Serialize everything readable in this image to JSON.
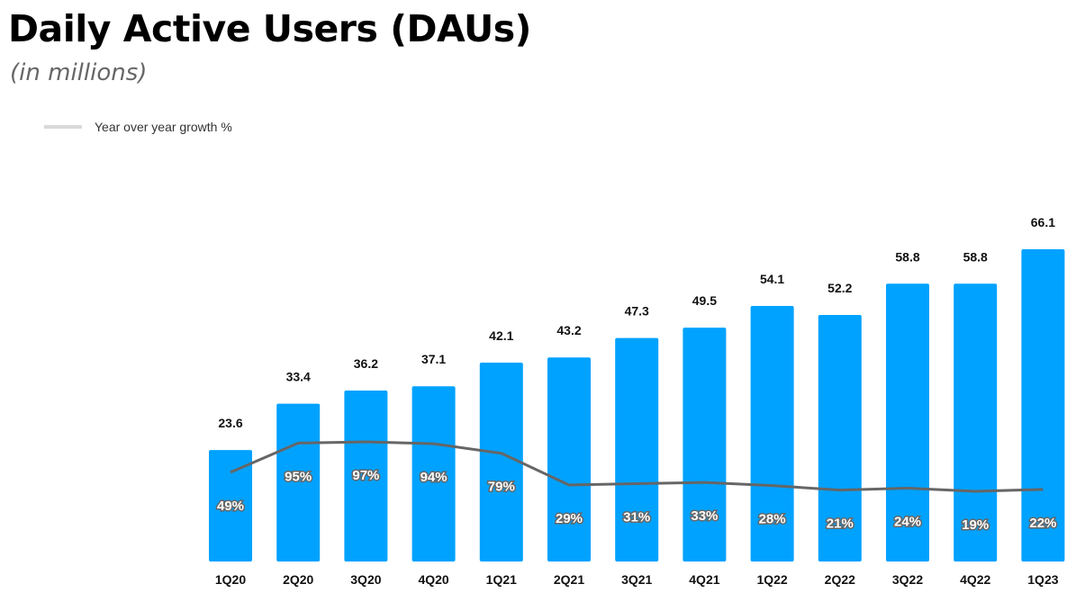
{
  "chart_data": {
    "type": "bar",
    "title": "Daily Active Users (DAUs)",
    "subtitle": "(in millions)",
    "categories": [
      "1Q20",
      "2Q20",
      "3Q20",
      "4Q20",
      "1Q21",
      "2Q21",
      "3Q21",
      "4Q21",
      "1Q22",
      "2Q22",
      "3Q22",
      "4Q22",
      "1Q23"
    ],
    "series": [
      {
        "values": [
          23.6,
          33.4,
          36.2,
          37.1,
          42.1,
          43.2,
          47.3,
          49.5,
          54.1,
          52.2,
          58.8,
          58.8,
          66.1
        ],
        "color": "#00a2ff",
        "type": "bar"
      },
      {
        "name": "Year over year growth %",
        "values": [
          49,
          95,
          97,
          94,
          79,
          29,
          31,
          33,
          28,
          21,
          24,
          19,
          22
        ],
        "color": "#666666",
        "type": "line",
        "unit": "%"
      }
    ],
    "legend_position": "top-left",
    "grid": false
  }
}
